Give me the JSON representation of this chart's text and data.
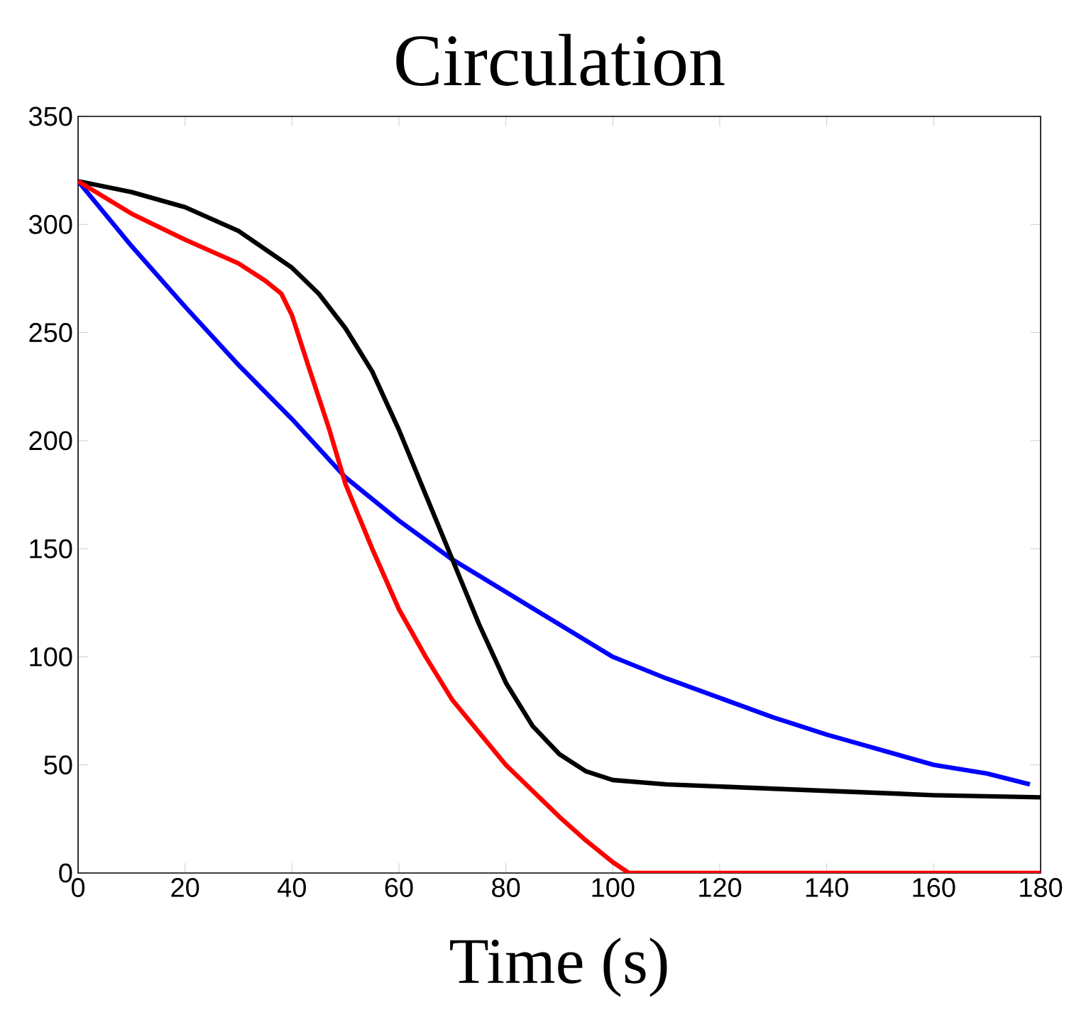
{
  "chart_data": {
    "type": "line",
    "title": "Circulation",
    "xlabel": "Time (s)",
    "xlim": [
      0,
      180
    ],
    "xticks": [
      0,
      20,
      40,
      60,
      80,
      100,
      120,
      140,
      160,
      180
    ],
    "ylim": [
      0,
      350
    ],
    "yticks": [
      0,
      50,
      100,
      150,
      200,
      250,
      300,
      350
    ],
    "series": [
      {
        "color": "#0000ff",
        "x": [
          0,
          10,
          20,
          30,
          40,
          50,
          60,
          70,
          80,
          90,
          100,
          110,
          120,
          130,
          140,
          150,
          160,
          170,
          178
        ],
        "values": [
          320,
          290,
          262,
          235,
          210,
          183,
          163,
          145,
          130,
          115,
          100,
          90,
          81,
          72,
          64,
          57,
          50,
          46,
          41
        ]
      },
      {
        "color": "#000000",
        "x": [
          0,
          10,
          20,
          30,
          40,
          45,
          50,
          55,
          60,
          65,
          70,
          75,
          80,
          85,
          90,
          95,
          100,
          110,
          120,
          140,
          160,
          180
        ],
        "values": [
          320,
          315,
          308,
          297,
          280,
          268,
          252,
          232,
          205,
          175,
          145,
          115,
          88,
          68,
          55,
          47,
          43,
          41,
          40,
          38,
          36,
          35
        ]
      },
      {
        "color": "#ff0000",
        "x": [
          0,
          10,
          20,
          30,
          35,
          38,
          40,
          43,
          47,
          50,
          55,
          60,
          65,
          70,
          75,
          80,
          85,
          90,
          95,
          100,
          103,
          120,
          180
        ],
        "values": [
          320,
          305,
          293,
          282,
          274,
          268,
          258,
          235,
          205,
          180,
          150,
          122,
          100,
          80,
          65,
          50,
          38,
          26,
          15,
          5,
          0,
          0,
          0
        ]
      }
    ]
  }
}
